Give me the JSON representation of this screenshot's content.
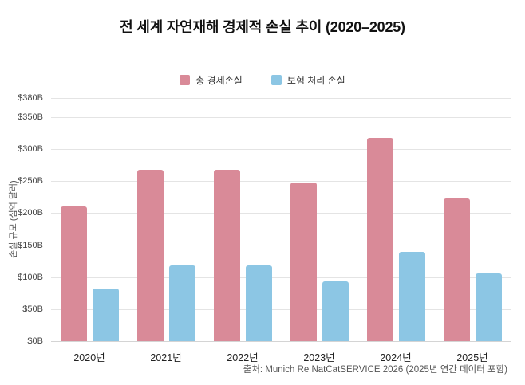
{
  "title": "전 세계 자연재해 경제적 손실 추이 (2020–2025)",
  "source": "출처: Munich Re NatCatSERVICE 2026 (2025년 연간 데이터 포함)",
  "colors": {
    "total": "#d98a98",
    "insured": "#8cc6e4",
    "gridline": "#e4e4e4",
    "title_text": "#111111"
  },
  "chart_data": {
    "type": "bar",
    "title": "전 세계 자연재해 경제적 손실 추이 (2020–2025)",
    "categories": [
      "2020년",
      "2021년",
      "2022년",
      "2023년",
      "2024년",
      "2025년"
    ],
    "series": [
      {
        "key": "total",
        "name": "총 경제손실",
        "color": "#d98a98",
        "values": [
          210,
          268,
          268,
          248,
          318,
          223
        ]
      },
      {
        "key": "insured",
        "name": "보험 처리 손실",
        "color": "#8cc6e4",
        "values": [
          82,
          119,
          119,
          94,
          139,
          106
        ]
      }
    ],
    "xlabel": "",
    "ylabel": "손실 규모 (십억 달러)",
    "ylim": [
      0,
      380
    ],
    "yticks": [
      {
        "value": 0,
        "label": "$0B"
      },
      {
        "value": 50,
        "label": "$50B"
      },
      {
        "value": 100,
        "label": "$100B"
      },
      {
        "value": 150,
        "label": "$150B"
      },
      {
        "value": 200,
        "label": "$200B"
      },
      {
        "value": 250,
        "label": "$250B"
      },
      {
        "value": 300,
        "label": "$300B"
      },
      {
        "value": 350,
        "label": "$350B"
      },
      {
        "value": 380,
        "label": "$380B"
      }
    ],
    "grid": true,
    "legend_position": "top",
    "unit": "billion USD"
  }
}
